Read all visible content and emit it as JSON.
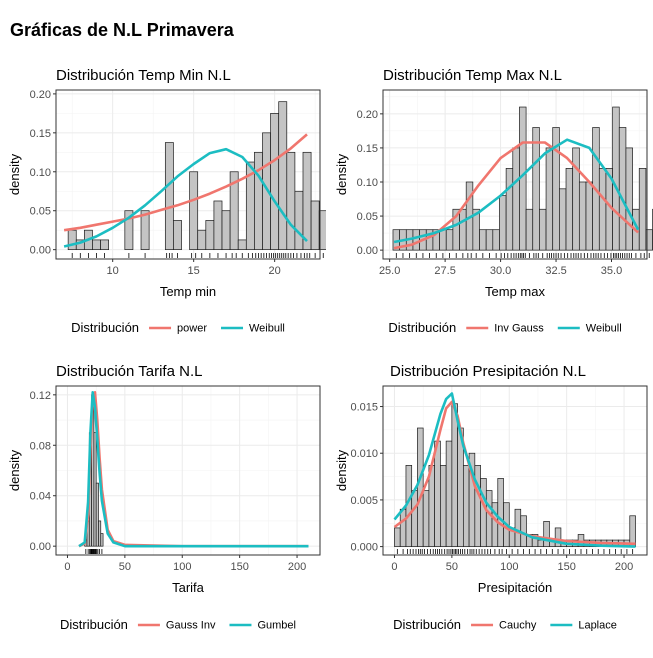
{
  "page_title": "Gráficas de N.L Primavera",
  "colors": {
    "bar_fill": "#c4c4c4",
    "bar_stroke": "#1a1a1a",
    "series_a": "#f0766e",
    "series_b": "#1cbdc2",
    "grid": "#ebebeb"
  },
  "chart_data": [
    {
      "type": "bar",
      "title": "Distribución Temp Min N.L",
      "xlabel": "Temp min",
      "ylabel": "density",
      "xlim": [
        6.5,
        22.8
      ],
      "ylim": [
        -0.012,
        0.205
      ],
      "xticks": [
        10,
        15,
        20
      ],
      "yticks": [
        0.0,
        0.05,
        0.1,
        0.15,
        0.2
      ],
      "ytick_labels": [
        "0.00",
        "0.05",
        "0.10",
        "0.15",
        "0.20"
      ],
      "grid": true,
      "legend": {
        "title": "Distribución",
        "position": "bottom",
        "entries": [
          "power",
          "Weibull"
        ]
      },
      "bins": {
        "start": 7.25,
        "width": 0.5,
        "values": [
          0.025,
          0.0125,
          0.025,
          0.0125,
          0.0125,
          0,
          0,
          0.05,
          0,
          0.05,
          0,
          0,
          0.1375,
          0.0375,
          0,
          0.1,
          0.025,
          0.0375,
          0.0625,
          0.05,
          0.1,
          0.0125,
          0.1125,
          0.125,
          0.15,
          0.175,
          0.19,
          0.125,
          0.075,
          0.125,
          0.0625,
          0.05,
          0.125,
          0.05,
          0.025,
          0.05,
          0.025,
          0.025,
          0.025,
          0.025
        ]
      },
      "series": [
        {
          "name": "power",
          "x": [
            7,
            8,
            9,
            10,
            11,
            12,
            13,
            14,
            15,
            16,
            17,
            18,
            19,
            20,
            21,
            22
          ],
          "y": [
            0.025,
            0.028,
            0.032,
            0.036,
            0.04,
            0.045,
            0.051,
            0.057,
            0.064,
            0.072,
            0.081,
            0.091,
            0.102,
            0.115,
            0.13,
            0.148
          ]
        },
        {
          "name": "Weibull",
          "x": [
            7,
            8,
            9,
            10,
            11,
            12,
            13,
            14,
            15,
            16,
            17,
            18,
            19,
            20,
            21,
            22
          ],
          "y": [
            0.004,
            0.009,
            0.017,
            0.028,
            0.041,
            0.057,
            0.075,
            0.094,
            0.11,
            0.124,
            0.129,
            0.119,
            0.095,
            0.062,
            0.032,
            0.011
          ]
        }
      ]
    },
    {
      "type": "bar",
      "title": "Distribución Temp Max N.L",
      "xlabel": "Temp max",
      "ylabel": "density",
      "xlim": [
        24.7,
        36.6
      ],
      "ylim": [
        -0.013,
        0.235
      ],
      "xticks": [
        25.0,
        27.5,
        30.0,
        32.5,
        35.0
      ],
      "xtick_labels": [
        "25.0",
        "27.5",
        "30.0",
        "32.5",
        "35.0"
      ],
      "yticks": [
        0.0,
        0.05,
        0.1,
        0.15,
        0.2
      ],
      "ytick_labels": [
        "0.00",
        "0.05",
        "0.10",
        "0.15",
        "0.20"
      ],
      "grid": true,
      "legend": {
        "title": "Distribución",
        "position": "bottom",
        "entries": [
          "Inv Gauss",
          "Weibull"
        ]
      },
      "bins": {
        "start": 25.15,
        "width": 0.3,
        "values": [
          0.03,
          0.03,
          0.03,
          0.03,
          0.03,
          0.03,
          0.03,
          0.03,
          0.03,
          0.06,
          0.06,
          0.1,
          0.06,
          0.03,
          0.03,
          0.03,
          0.08,
          0.12,
          0.15,
          0.21,
          0.06,
          0.18,
          0.06,
          0.15,
          0.18,
          0.09,
          0.12,
          0.15,
          0.1,
          0.1,
          0.18,
          0.12,
          0.12,
          0.21,
          0.18,
          0.15,
          0.06,
          0.12,
          0.03,
          0.06,
          0.12,
          0.03
        ]
      },
      "series": [
        {
          "name": "Inv Gauss",
          "x": [
            25.2,
            26,
            27,
            28,
            29,
            30,
            31,
            32,
            33,
            34,
            35,
            36.2
          ],
          "y": [
            0.003,
            0.008,
            0.022,
            0.05,
            0.095,
            0.135,
            0.158,
            0.158,
            0.135,
            0.1,
            0.062,
            0.026
          ]
        },
        {
          "name": "Weibull",
          "x": [
            25.2,
            26,
            27,
            28,
            29,
            30,
            31,
            32,
            33,
            34,
            35,
            36.2
          ],
          "y": [
            0.012,
            0.017,
            0.025,
            0.037,
            0.055,
            0.08,
            0.11,
            0.142,
            0.162,
            0.15,
            0.105,
            0.03
          ]
        }
      ]
    },
    {
      "type": "bar",
      "title": "Distribución Tarifa N.L",
      "xlabel": "Tarifa",
      "ylabel": "density",
      "xlim": [
        -10,
        220
      ],
      "ylim": [
        -0.007,
        0.127
      ],
      "xticks": [
        0,
        50,
        100,
        150,
        200
      ],
      "yticks": [
        0.0,
        0.04,
        0.08,
        0.12
      ],
      "ytick_labels": [
        "0.00",
        "0.04",
        "0.08",
        "0.12"
      ],
      "grid": true,
      "legend": {
        "title": "Distribución",
        "position": "bottom",
        "entries": [
          "Gauss Inv",
          "Gumbel"
        ]
      },
      "bins": {
        "start": 15,
        "width": 2,
        "values": [
          0.005,
          0.02,
          0.09,
          0.12,
          0.09,
          0.05,
          0.02,
          0.01
        ]
      },
      "series": [
        {
          "name": "Gauss Inv",
          "x": [
            10,
            15,
            18,
            20,
            22,
            24,
            26,
            28,
            30,
            35,
            40,
            50,
            100,
            210
          ],
          "y": [
            0,
            0.002,
            0.025,
            0.075,
            0.116,
            0.122,
            0.1,
            0.07,
            0.045,
            0.013,
            0.004,
            0.001,
            0,
            0
          ]
        },
        {
          "name": "Gumbel",
          "x": [
            10,
            15,
            18,
            20,
            22,
            24,
            26,
            28,
            30,
            35,
            40,
            50,
            100,
            210
          ],
          "y": [
            0,
            0.003,
            0.035,
            0.09,
            0.122,
            0.11,
            0.085,
            0.058,
            0.036,
            0.01,
            0.003,
            0,
            0,
            0
          ]
        }
      ]
    },
    {
      "type": "bar",
      "title": "Distribución Presipitación N.L",
      "xlabel": "Presipitación",
      "ylabel": "density",
      "xlim": [
        -10,
        220
      ],
      "ylim": [
        -0.0009,
        0.0172
      ],
      "xticks": [
        0,
        50,
        100,
        150,
        200
      ],
      "yticks": [
        0.0,
        0.005,
        0.01,
        0.015
      ],
      "ytick_labels": [
        "0.000",
        "0.005",
        "0.010",
        "0.015"
      ],
      "grid": true,
      "legend": {
        "title": "Distribución",
        "position": "bottom",
        "entries": [
          "Cauchy",
          "Laplace"
        ]
      },
      "bins": {
        "start": 0,
        "width": 5,
        "values": [
          0.002,
          0.004,
          0.0087,
          0.006,
          0.0127,
          0.006,
          0.0087,
          0.0113,
          0.0087,
          0.0113,
          0.0153,
          0.0127,
          0.0087,
          0.01,
          0.0087,
          0.0073,
          0.006,
          0.0047,
          0.0073,
          0.0047,
          0.002,
          0.004,
          0.0033,
          0.0013,
          0.0013,
          0.0007,
          0.0027,
          0.0007,
          0.002,
          0.0007,
          0.0007,
          0.0007,
          0.0013,
          0.0007,
          0.0007,
          0.0007,
          0.0007,
          0.0007,
          0.0007,
          0.0007,
          0.0007,
          0.0033
        ]
      },
      "series": [
        {
          "name": "Cauchy",
          "x": [
            0,
            10,
            20,
            30,
            40,
            45,
            50,
            55,
            60,
            70,
            80,
            90,
            100,
            120,
            150,
            180,
            210
          ],
          "y": [
            0.0021,
            0.003,
            0.0045,
            0.0075,
            0.0125,
            0.0148,
            0.0155,
            0.014,
            0.0111,
            0.0065,
            0.0039,
            0.0026,
            0.0018,
            0.0011,
            0.0006,
            0.0004,
            0.0003
          ]
        },
        {
          "name": "Laplace",
          "x": [
            0,
            10,
            20,
            30,
            40,
            45,
            50,
            55,
            60,
            70,
            80,
            90,
            100,
            120,
            150,
            180,
            210
          ],
          "y": [
            0.0029,
            0.0044,
            0.0066,
            0.0098,
            0.0142,
            0.0158,
            0.0164,
            0.0135,
            0.0108,
            0.0072,
            0.0047,
            0.0032,
            0.0021,
            0.001,
            0.0003,
            0.0001,
            0
          ]
        }
      ]
    }
  ]
}
